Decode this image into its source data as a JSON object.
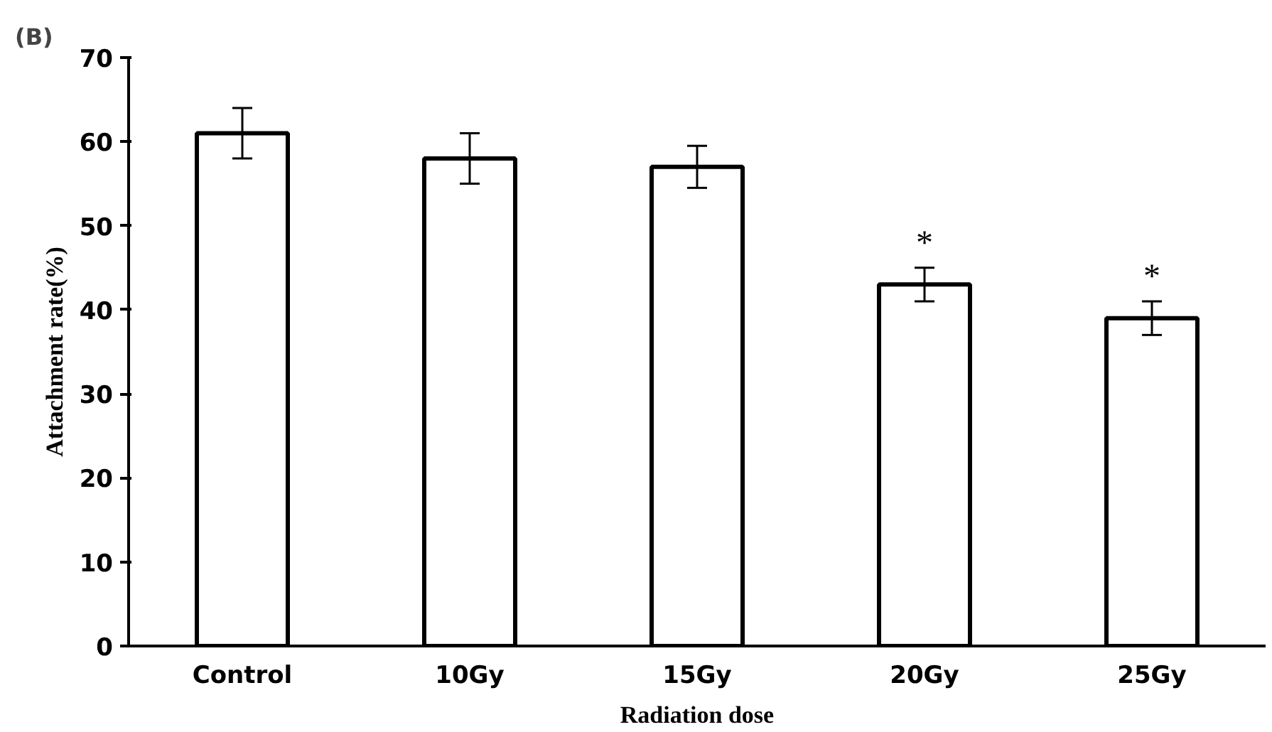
{
  "chart_data": {
    "type": "bar",
    "title": "(B)",
    "xlabel": "Radiation dose",
    "ylabel": "Attachment rate(%)",
    "categories": [
      "Control",
      "10Gy",
      "15Gy",
      "20Gy",
      "25Gy"
    ],
    "values": [
      61,
      58,
      57,
      43,
      39
    ],
    "errors": [
      3,
      3,
      2.5,
      2,
      2
    ],
    "color": "#ffffff",
    "ylim": [
      0,
      70
    ],
    "yticks": [
      0,
      10,
      20,
      30,
      40,
      50,
      60,
      70
    ],
    "grid": false,
    "annotations": [
      {
        "text": "*",
        "x": "20Gy",
        "y": 45
      },
      {
        "text": "*",
        "x": "25Gy",
        "y": 41
      }
    ]
  }
}
